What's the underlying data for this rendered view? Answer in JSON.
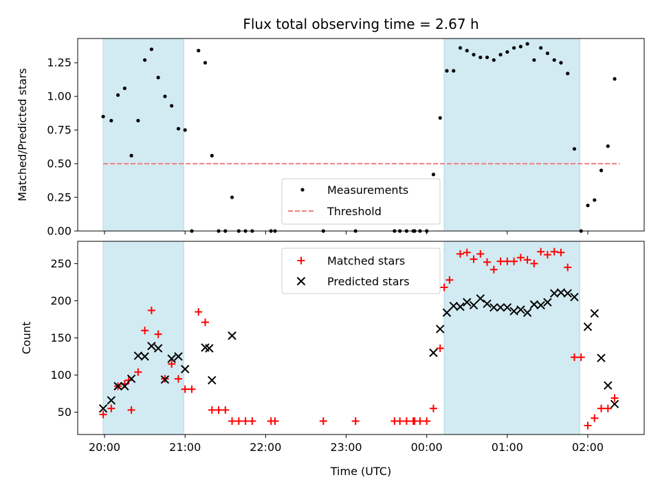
{
  "title": "Flux total observing time = 2.67 h",
  "colors": {
    "shade": "#add8e6",
    "measurement": "#000000",
    "threshold": "#f08080",
    "matched": "#ff0000",
    "predicted": "#000000"
  },
  "chart_data": [
    {
      "type": "scatter",
      "ylabel": "Matched/Predicted stars",
      "xlim": [
        "19:40",
        "02:42"
      ],
      "ylim": [
        0,
        1.43
      ],
      "yticks": [
        "0.00",
        "0.25",
        "0.50",
        "0.75",
        "1.00",
        "1.25"
      ],
      "shaded_intervals": [
        [
          "19:59",
          "20:59"
        ],
        [
          "00:13",
          "01:54"
        ]
      ],
      "threshold": 0.5,
      "threshold_range": [
        "19:59",
        "02:24"
      ],
      "legend": {
        "placement": "lower center",
        "entries": [
          "Measurements",
          "Threshold"
        ]
      },
      "series": [
        {
          "name": "Measurements",
          "marker": "dot",
          "points": [
            [
              "19:59",
              0.85
            ],
            [
              "20:05",
              0.82
            ],
            [
              "20:10",
              1.01
            ],
            [
              "20:15",
              1.06
            ],
            [
              "20:20",
              0.56
            ],
            [
              "20:25",
              0.82
            ],
            [
              "20:30",
              1.27
            ],
            [
              "20:35",
              1.35
            ],
            [
              "20:40",
              1.14
            ],
            [
              "20:45",
              1.0
            ],
            [
              "20:50",
              0.93
            ],
            [
              "20:55",
              0.76
            ],
            [
              "21:00",
              0.75
            ],
            [
              "21:05",
              0.0
            ],
            [
              "21:10",
              1.34
            ],
            [
              "21:15",
              1.25
            ],
            [
              "21:20",
              0.56
            ],
            [
              "21:25",
              0.0
            ],
            [
              "21:30",
              0.0
            ],
            [
              "21:35",
              0.25
            ],
            [
              "21:40",
              0.0
            ],
            [
              "21:45",
              0.0
            ],
            [
              "21:50",
              0.0
            ],
            [
              "22:04",
              0.0
            ],
            [
              "22:07",
              0.0
            ],
            [
              "22:43",
              0.0
            ],
            [
              "23:07",
              0.0
            ],
            [
              "23:36",
              0.0
            ],
            [
              "23:40",
              0.0
            ],
            [
              "23:45",
              0.0
            ],
            [
              "23:50",
              0.0
            ],
            [
              "23:51",
              0.0
            ],
            [
              "23:55",
              0.0
            ],
            [
              "00:00",
              0.0
            ],
            [
              "00:05",
              0.42
            ],
            [
              "00:10",
              0.84
            ],
            [
              "00:15",
              1.19
            ],
            [
              "00:20",
              1.19
            ],
            [
              "00:25",
              1.36
            ],
            [
              "00:30",
              1.34
            ],
            [
              "00:35",
              1.31
            ],
            [
              "00:40",
              1.29
            ],
            [
              "00:45",
              1.29
            ],
            [
              "00:50",
              1.27
            ],
            [
              "00:55",
              1.31
            ],
            [
              "01:00",
              1.33
            ],
            [
              "01:05",
              1.36
            ],
            [
              "01:10",
              1.37
            ],
            [
              "01:15",
              1.39
            ],
            [
              "01:20",
              1.27
            ],
            [
              "01:25",
              1.36
            ],
            [
              "01:30",
              1.32
            ],
            [
              "01:35",
              1.27
            ],
            [
              "01:40",
              1.25
            ],
            [
              "01:45",
              1.17
            ],
            [
              "01:50",
              0.61
            ],
            [
              "01:55",
              0.0
            ],
            [
              "02:00",
              0.19
            ],
            [
              "02:05",
              0.23
            ],
            [
              "02:10",
              0.45
            ],
            [
              "02:15",
              0.63
            ],
            [
              "02:20",
              1.13
            ]
          ]
        }
      ]
    },
    {
      "type": "scatter",
      "ylabel": "Count",
      "xlabel": "Time (UTC)",
      "xlim": [
        "19:40",
        "02:42"
      ],
      "ylim": [
        20,
        280
      ],
      "yticks": [
        "50",
        "100",
        "150",
        "200",
        "250"
      ],
      "xticks": [
        "20:00",
        "21:00",
        "22:00",
        "23:00",
        "00:00",
        "01:00",
        "02:00"
      ],
      "shaded_intervals": [
        [
          "19:59",
          "20:59"
        ],
        [
          "00:13",
          "01:54"
        ]
      ],
      "legend": {
        "placement": "upper center",
        "entries": [
          "Matched stars",
          "Predicted stars"
        ]
      },
      "series": [
        {
          "name": "Matched stars",
          "marker": "plus",
          "points": [
            [
              "19:59",
              47
            ],
            [
              "20:05",
              55
            ],
            [
              "20:10",
              85
            ],
            [
              "20:15",
              88
            ],
            [
              "20:18",
              93
            ],
            [
              "20:20",
              53
            ],
            [
              "20:25",
              104
            ],
            [
              "20:30",
              160
            ],
            [
              "20:35",
              187
            ],
            [
              "20:40",
              155
            ],
            [
              "20:45",
              95
            ],
            [
              "20:50",
              115
            ],
            [
              "20:55",
              95
            ],
            [
              "21:00",
              81
            ],
            [
              "21:05",
              81
            ],
            [
              "21:10",
              185
            ],
            [
              "21:15",
              171
            ],
            [
              "21:20",
              53
            ],
            [
              "21:25",
              53
            ],
            [
              "21:30",
              53
            ],
            [
              "21:35",
              38
            ],
            [
              "21:40",
              38
            ],
            [
              "21:45",
              38
            ],
            [
              "21:50",
              38
            ],
            [
              "22:04",
              38
            ],
            [
              "22:07",
              38
            ],
            [
              "22:43",
              38
            ],
            [
              "23:07",
              38
            ],
            [
              "23:36",
              38
            ],
            [
              "23:40",
              38
            ],
            [
              "23:45",
              38
            ],
            [
              "23:50",
              38
            ],
            [
              "23:51",
              38
            ],
            [
              "23:55",
              38
            ],
            [
              "00:00",
              38
            ],
            [
              "00:05",
              55
            ],
            [
              "00:10",
              136
            ],
            [
              "00:13",
              218
            ],
            [
              "00:17",
              228
            ],
            [
              "00:25",
              263
            ],
            [
              "00:30",
              265
            ],
            [
              "00:35",
              256
            ],
            [
              "00:40",
              263
            ],
            [
              "00:45",
              252
            ],
            [
              "00:50",
              242
            ],
            [
              "00:55",
              253
            ],
            [
              "01:00",
              253
            ],
            [
              "01:05",
              253
            ],
            [
              "01:10",
              258
            ],
            [
              "01:15",
              255
            ],
            [
              "01:20",
              250
            ],
            [
              "01:25",
              266
            ],
            [
              "01:30",
              262
            ],
            [
              "01:35",
              266
            ],
            [
              "01:40",
              265
            ],
            [
              "01:45",
              245
            ],
            [
              "01:50",
              124
            ],
            [
              "01:55",
              124
            ],
            [
              "02:00",
              32
            ],
            [
              "02:05",
              42
            ],
            [
              "02:10",
              55
            ],
            [
              "02:15",
              55
            ],
            [
              "02:20",
              69
            ]
          ]
        },
        {
          "name": "Predicted stars",
          "marker": "x",
          "points": [
            [
              "19:59",
              55
            ],
            [
              "20:05",
              66
            ],
            [
              "20:10",
              85
            ],
            [
              "20:15",
              85
            ],
            [
              "20:20",
              95
            ],
            [
              "20:25",
              126
            ],
            [
              "20:30",
              125
            ],
            [
              "20:35",
              139
            ],
            [
              "20:40",
              136
            ],
            [
              "20:45",
              94
            ],
            [
              "20:50",
              122
            ],
            [
              "20:55",
              125
            ],
            [
              "21:00",
              108
            ],
            [
              "21:15",
              137
            ],
            [
              "21:18",
              136
            ],
            [
              "21:20",
              93
            ],
            [
              "21:35",
              153
            ],
            [
              "00:05",
              130
            ],
            [
              "00:10",
              162
            ],
            [
              "00:15",
              184
            ],
            [
              "00:20",
              193
            ],
            [
              "00:25",
              192
            ],
            [
              "00:30",
              198
            ],
            [
              "00:35",
              194
            ],
            [
              "00:40",
              203
            ],
            [
              "00:45",
              196
            ],
            [
              "00:50",
              191
            ],
            [
              "00:55",
              191
            ],
            [
              "01:00",
              191
            ],
            [
              "01:05",
              186
            ],
            [
              "01:10",
              188
            ],
            [
              "01:15",
              184
            ],
            [
              "01:20",
              195
            ],
            [
              "01:25",
              194
            ],
            [
              "01:30",
              198
            ],
            [
              "01:35",
              210
            ],
            [
              "01:40",
              211
            ],
            [
              "01:45",
              210
            ],
            [
              "01:50",
              205
            ],
            [
              "02:00",
              165
            ],
            [
              "02:05",
              183
            ],
            [
              "02:10",
              123
            ],
            [
              "02:15",
              86
            ],
            [
              "02:20",
              61
            ]
          ]
        }
      ]
    }
  ]
}
